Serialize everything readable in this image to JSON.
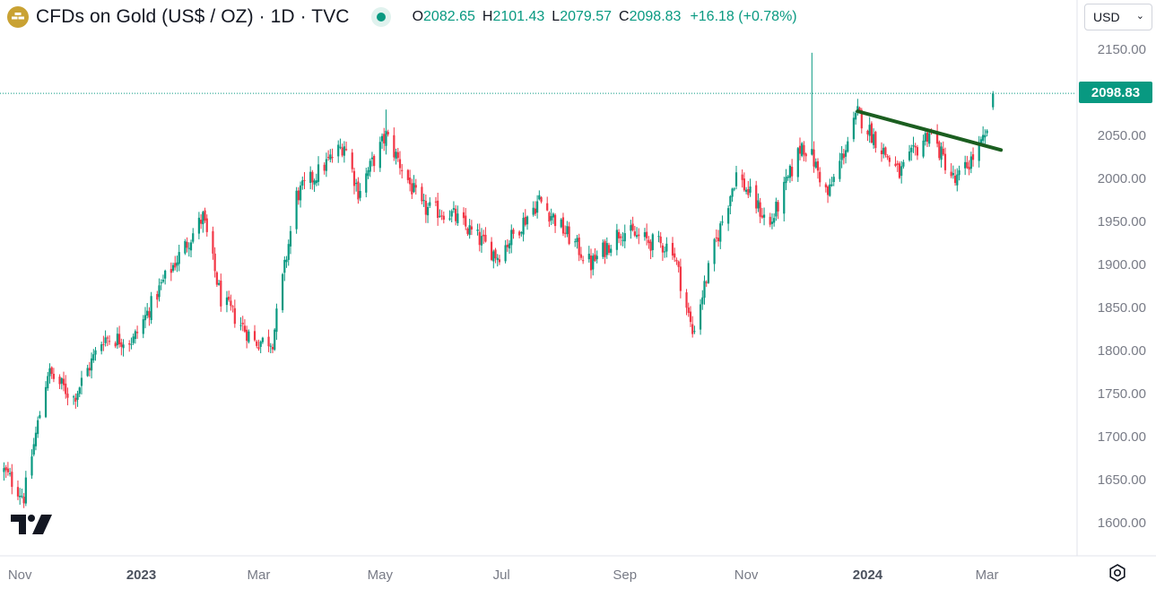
{
  "header": {
    "title": "CFDs on Gold (US$ / OZ) · 1D · TVC",
    "logo_icon": "gold-bars-icon",
    "ohlc": [
      {
        "key": "O",
        "value": "2082.65"
      },
      {
        "key": "H",
        "value": "2101.43"
      },
      {
        "key": "L",
        "value": "2079.57"
      },
      {
        "key": "C",
        "value": "2098.83"
      }
    ],
    "change": "+16.18 (+0.78%)"
  },
  "currency_selector": {
    "value": "USD",
    "icon": "chevron-down-icon"
  },
  "last_price": "2098.83",
  "colors": {
    "up": "#089981",
    "down": "#f23645",
    "trendline": "#1b5e20",
    "text": "#131722",
    "axis_text": "#787b86",
    "logo": "#c9a233"
  },
  "chart_data": {
    "type": "candlestick",
    "title": "",
    "y_axis": {
      "position": "right",
      "ticks": [
        "2150.00",
        "2100.00",
        "2050.00",
        "2000.00",
        "1950.00",
        "1900.00",
        "1850.00",
        "1800.00",
        "1750.00",
        "1700.00",
        "1650.00",
        "1600.00"
      ],
      "range": [
        1580,
        2170
      ]
    },
    "x_axis": {
      "ticks": [
        "Nov",
        "2023",
        "Mar",
        "May",
        "Jul",
        "Sep",
        "Nov",
        "2024",
        "Mar"
      ],
      "range": [
        "2022-10-22",
        "2024-03-12"
      ]
    },
    "grid": false,
    "series": [
      {
        "key_points": [
          {
            "x": "2022-10-24",
            "close": 1660
          },
          {
            "x": "2022-11-03",
            "close": 1630
          },
          {
            "x": "2022-11-15",
            "close": 1775
          },
          {
            "x": "2022-11-28",
            "close": 1745
          },
          {
            "x": "2022-12-13",
            "close": 1815
          },
          {
            "x": "2022-12-28",
            "close": 1812
          },
          {
            "x": "2023-01-12",
            "close": 1880
          },
          {
            "x": "2023-02-01",
            "close": 1955
          },
          {
            "x": "2023-02-10",
            "close": 1860
          },
          {
            "x": "2023-02-27",
            "close": 1810
          },
          {
            "x": "2023-03-08",
            "close": 1812
          },
          {
            "x": "2023-03-20",
            "close": 1980
          },
          {
            "x": "2023-04-13",
            "close": 2040
          },
          {
            "x": "2023-04-20",
            "close": 1985
          },
          {
            "x": "2023-05-04",
            "close": 2050
          },
          {
            "x": "2023-05-22",
            "close": 1965
          },
          {
            "x": "2023-06-05",
            "close": 1960
          },
          {
            "x": "2023-06-29",
            "close": 1910
          },
          {
            "x": "2023-07-20",
            "close": 1975
          },
          {
            "x": "2023-08-15",
            "close": 1900
          },
          {
            "x": "2023-08-30",
            "close": 1940
          },
          {
            "x": "2023-09-15",
            "close": 1925
          },
          {
            "x": "2023-09-25",
            "close": 1920
          },
          {
            "x": "2023-10-05",
            "close": 1820
          },
          {
            "x": "2023-10-16",
            "close": 1920
          },
          {
            "x": "2023-10-27",
            "close": 2005
          },
          {
            "x": "2023-11-13",
            "close": 1945
          },
          {
            "x": "2023-11-29",
            "close": 2040
          },
          {
            "x": "2023-12-04",
            "close": 2025
          },
          {
            "x": "2023-12-12",
            "close": 1980
          },
          {
            "x": "2023-12-27",
            "close": 2075
          },
          {
            "x": "2024-01-17",
            "close": 2005
          },
          {
            "x": "2024-02-01",
            "close": 2055
          },
          {
            "x": "2024-02-14",
            "close": 1995
          },
          {
            "x": "2024-02-29",
            "close": 2045
          },
          {
            "x": "2024-03-04",
            "close": 2098.83
          }
        ],
        "spikes": [
          {
            "x": "2023-12-04",
            "high": 2146
          },
          {
            "x": "2023-05-04",
            "high": 2080
          }
        ]
      }
    ],
    "trendline": {
      "from": {
        "x": "2023-12-27",
        "y": 2078
      },
      "to": {
        "x": "2024-03-08",
        "y": 2033
      }
    },
    "last_price_line": 2098.83
  }
}
